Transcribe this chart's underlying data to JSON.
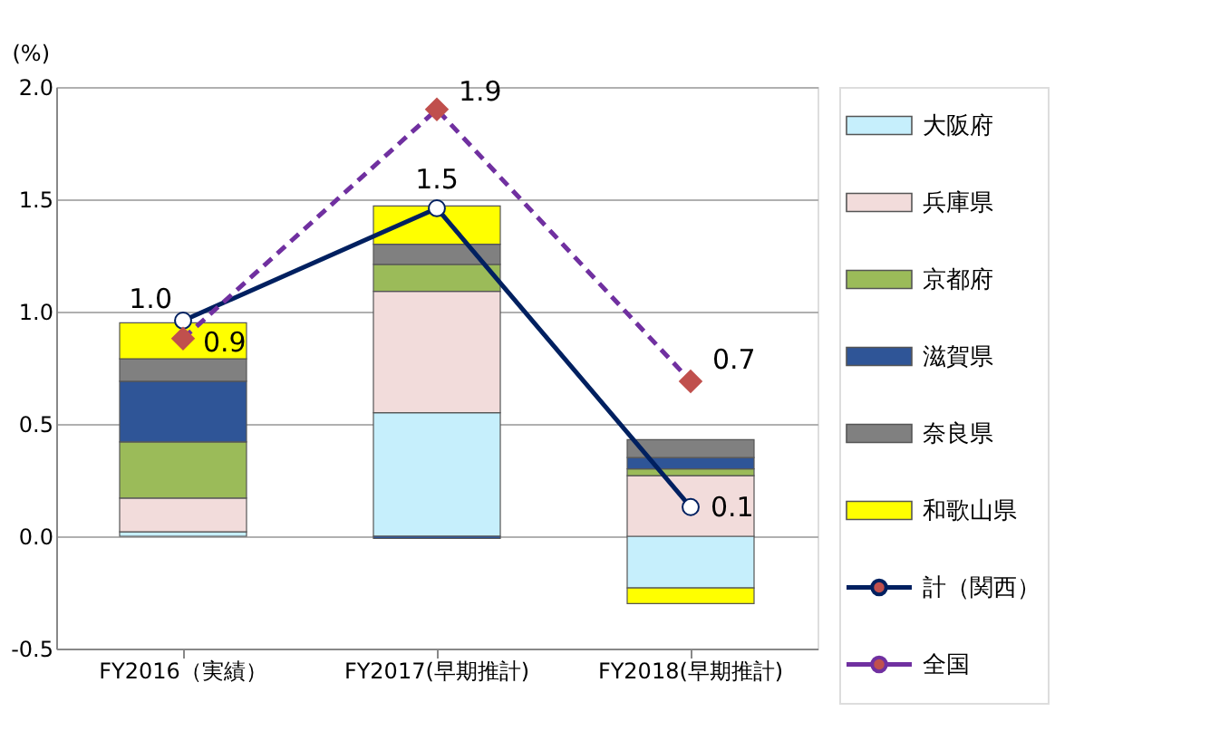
{
  "chart_data": {
    "type": "bar",
    "stacked": true,
    "ylabel": "(%)",
    "categories": [
      "FY2016（実績）",
      "FY2017(早期推計)",
      "FY2018(早期推計)"
    ],
    "ylim": [
      -0.5,
      2.0
    ],
    "yticks": [
      -0.5,
      {
        "value": 0,
        "label": "0.0"
      },
      0.5,
      {
        "value": 1,
        "label": "1.0"
      },
      1.5,
      {
        "value": 2,
        "label": "2.0"
      }
    ],
    "grid": "y",
    "legend": "right",
    "series": [
      {
        "name": "大阪府",
        "color": "#c6effc",
        "values": [
          0.02,
          0.55,
          -0.23
        ]
      },
      {
        "name": "兵庫県",
        "color": "#f2dcdb",
        "values": [
          0.15,
          0.54,
          0.27
        ]
      },
      {
        "name": "京都府",
        "color": "#9bbb59",
        "values": [
          0.25,
          0.12,
          0.03
        ]
      },
      {
        "name": "滋賀県",
        "color": "#2f5597",
        "values": [
          0.27,
          -0.01,
          0.05
        ]
      },
      {
        "name": "奈良県",
        "color": "#808080",
        "values": [
          0.1,
          0.09,
          0.08
        ]
      },
      {
        "name": "和歌山県",
        "color": "#ffff00",
        "values": [
          0.16,
          0.17,
          -0.07
        ]
      },
      {
        "name": "計（関西）",
        "type": "line",
        "color": "#002060",
        "marker": "circle",
        "line_style": "solid",
        "values": [
          0.96,
          1.46,
          0.13
        ],
        "value_labels": [
          "1.0",
          "1.5",
          "0.1"
        ]
      },
      {
        "name": "全国",
        "type": "line",
        "color": "#7030a0",
        "marker": "diamond",
        "line_style": "dashed",
        "values": [
          0.88,
          1.9,
          0.69
        ],
        "value_labels": [
          "0.9",
          "1.9",
          "0.7"
        ]
      }
    ]
  }
}
